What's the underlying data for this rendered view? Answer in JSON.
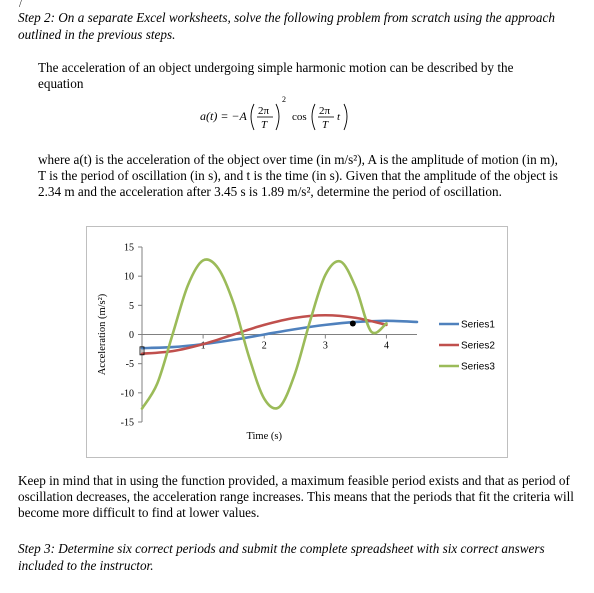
{
  "top_mark": "/",
  "step2": "Step 2: On a separate Excel worksheets, solve the following problem from scratch using the approach outlined in the previous steps.",
  "intro": "The acceleration of an object undergoing simple harmonic motion can be described by the equation",
  "equation": {
    "lhs": "a(t) = −A",
    "num": "2π",
    "den": "T",
    "exp": "2",
    "cos": "cos",
    "num2": "2π",
    "den2": "T",
    "var": "t"
  },
  "description": "where a(t) is the acceleration of the object over time (in m/s²), A is the amplitude of motion (in m), T is the period of oscillation (in s), and t is the time (in s). Given that the amplitude of the object is 2.34 m and the acceleration after 3.45 s is 1.89 m/s², determine the period of oscillation.",
  "note": "Keep in mind that in using the function provided, a maximum feasible period exists and that as period of oscillation decreases, the acceleration range increases. This means that the periods that fit the criteria will become more difficult to find at lower values.",
  "step3": "Step 3: Determine six correct periods and submit the complete spreadsheet with six correct answers included to the instructor.",
  "chart_data": {
    "type": "line",
    "title": "",
    "xlabel": "Time (s)",
    "ylabel": "Acceleration (m/s²)",
    "xlim": [
      0,
      4.5
    ],
    "ylim": [
      -15,
      15
    ],
    "x_ticks": [
      "1",
      "2",
      "3",
      "4"
    ],
    "y_ticks": [
      "15",
      "10",
      "5",
      "0",
      "-5",
      "-10",
      "-15"
    ],
    "legend_position": "right",
    "grid": false,
    "series": [
      {
        "name": "Series1",
        "color": "#4f81bd",
        "x": [
          0,
          0.5,
          1,
          1.5,
          2,
          2.5,
          3,
          3.5,
          4,
          4.5
        ],
        "y": [
          -2.34,
          -2.16,
          -1.65,
          -0.9,
          0,
          0.9,
          1.65,
          2.16,
          2.34,
          2.16
        ]
      },
      {
        "name": "Series2",
        "color": "#c0504d",
        "x": [
          0,
          0.5,
          1,
          1.5,
          2,
          2.5,
          3,
          3.5,
          4
        ],
        "y": [
          -3.3,
          -2.85,
          -1.65,
          0,
          1.65,
          2.85,
          3.3,
          2.85,
          1.65
        ]
      },
      {
        "name": "Series3",
        "color": "#9bbb59",
        "x": [
          0,
          0.25,
          0.5,
          0.75,
          1,
          1.25,
          1.5,
          1.75,
          2,
          2.25,
          2.5,
          2.75,
          3,
          3.25,
          3.5,
          3.75,
          4
        ],
        "y": [
          -12.7,
          -8.4,
          0,
          8.4,
          12.7,
          11.3,
          5.3,
          -3.8,
          -11.0,
          -12.4,
          -6.8,
          2.3,
          10.2,
          12.5,
          8.0,
          0.5,
          1.9
        ]
      }
    ],
    "highlight_point": {
      "x": 3.45,
      "y": 1.89
    }
  }
}
